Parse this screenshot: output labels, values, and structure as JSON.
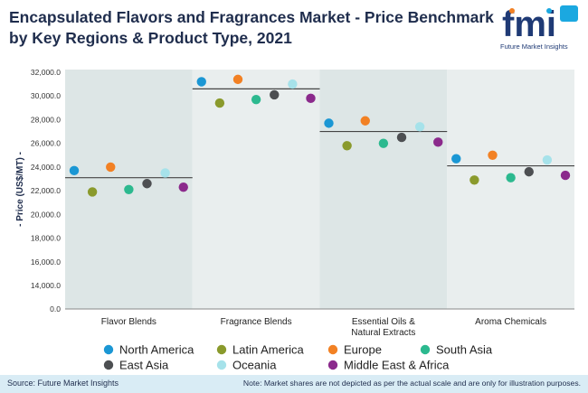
{
  "header": {
    "title": "Encapsulated Flavors and Fragrances Market - Price Benchmark by Key Regions & Product Type, 2021",
    "logo_text": "fmi",
    "logo_caption": "Future Market Insights"
  },
  "footer": {
    "source": "Source: Future Market Insights",
    "note": "Note: Market shares are not depicted as per the actual scale and are only for illustration purposes."
  },
  "colors": {
    "panel_dark": "#dde6e6",
    "panel_light": "#e9eeee",
    "brand_blue": "#1f3a75",
    "brand_lightblue": "#1ba8e0"
  },
  "chart_data": {
    "type": "scatter",
    "ylabel": "- Price (US$/MT) -",
    "ylim": [
      0,
      32000
    ],
    "yticks": [
      "0.0",
      "14,000.0",
      "16,000.0",
      "18,000.0",
      "20,000.0",
      "22,000.0",
      "24,000.0",
      "26,000.0",
      "28,000.0",
      "30,000.0",
      "32,000.0"
    ],
    "categories": [
      "Flavor Blends",
      "Fragrance Blends",
      "Essential Oils & Natural Extracts",
      "Aroma Chemicals"
    ],
    "category_lines": [
      [
        "Flavor Blends"
      ],
      [
        "Fragrance Blends"
      ],
      [
        "Essential Oils &",
        "Natural Extracts"
      ],
      [
        "Aroma Chemicals"
      ]
    ],
    "benchmark": [
      23100,
      30600,
      27000,
      24100
    ],
    "series": [
      {
        "name": "North America",
        "color": "#1b97d4",
        "values": [
          23700,
          31200,
          27700,
          24700
        ]
      },
      {
        "name": "Latin America",
        "color": "#8a9a2c",
        "values": [
          21900,
          29400,
          25800,
          22900
        ]
      },
      {
        "name": "Europe",
        "color": "#f28124",
        "values": [
          24000,
          31400,
          27900,
          25000
        ]
      },
      {
        "name": "South Asia",
        "color": "#2cb98f",
        "values": [
          22100,
          29700,
          26000,
          23100
        ]
      },
      {
        "name": "East Asia",
        "color": "#4d4f52",
        "values": [
          22600,
          30100,
          26500,
          23600
        ]
      },
      {
        "name": "Oceania",
        "color": "#a6e2ea",
        "values": [
          23500,
          31000,
          27400,
          24600
        ]
      },
      {
        "name": "Middle East & Africa",
        "color": "#8b2a8c",
        "values": [
          22300,
          29800,
          26100,
          23300
        ]
      }
    ],
    "legend_placement": "bottom",
    "grid": false
  }
}
